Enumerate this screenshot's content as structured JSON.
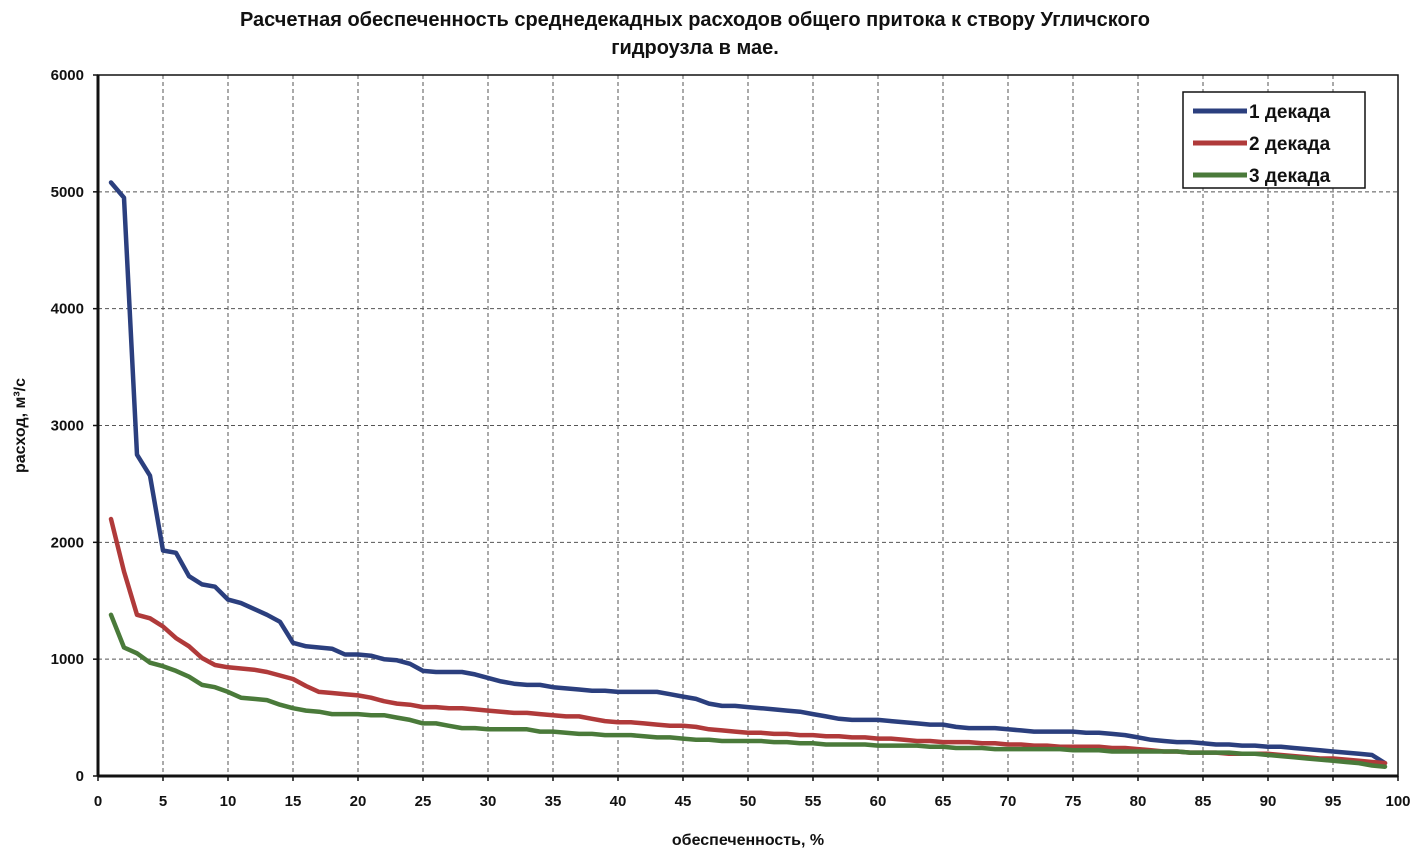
{
  "chart_data": {
    "type": "line",
    "title": [
      "Расчетная обеспеченность среднедекадных расходов общего притока к створу Угличского",
      "гидроузла в мае."
    ],
    "xlabel": "обеспеченность,  %",
    "ylabel": "расход, м³/с",
    "xlim": [
      0,
      100
    ],
    "ylim": [
      0,
      6000
    ],
    "xticks": [
      "0",
      "5",
      "10",
      "15",
      "20",
      "25",
      "30",
      "35",
      "40",
      "45",
      "50",
      "55",
      "60",
      "65",
      "70",
      "75",
      "80",
      "85",
      "90",
      "95",
      "100"
    ],
    "yticks": [
      "0",
      "1000",
      "2000",
      "3000",
      "4000",
      "5000",
      "6000"
    ],
    "grid": true,
    "legend_position": "top-right",
    "x": [
      1,
      2,
      3,
      4,
      5,
      6,
      7,
      8,
      9,
      10,
      11,
      12,
      13,
      14,
      15,
      16,
      17,
      18,
      19,
      20,
      21,
      22,
      23,
      24,
      25,
      26,
      27,
      28,
      29,
      30,
      31,
      32,
      33,
      34,
      35,
      36,
      37,
      38,
      39,
      40,
      41,
      42,
      43,
      44,
      45,
      46,
      47,
      48,
      49,
      50,
      51,
      52,
      53,
      54,
      55,
      56,
      57,
      58,
      59,
      60,
      61,
      62,
      63,
      64,
      65,
      66,
      67,
      68,
      69,
      70,
      71,
      72,
      73,
      74,
      75,
      76,
      77,
      78,
      79,
      80,
      81,
      82,
      83,
      84,
      85,
      86,
      87,
      88,
      89,
      90,
      91,
      92,
      93,
      94,
      95,
      96,
      97,
      98,
      99
    ],
    "series": [
      {
        "name": "1 декада",
        "color": "#2b3f7e",
        "values": [
          5080,
          4950,
          2750,
          2570,
          1930,
          1910,
          1710,
          1640,
          1620,
          1510,
          1480,
          1430,
          1380,
          1320,
          1140,
          1110,
          1100,
          1090,
          1040,
          1040,
          1030,
          1000,
          990,
          960,
          900,
          890,
          890,
          890,
          870,
          840,
          810,
          790,
          780,
          780,
          760,
          750,
          740,
          730,
          730,
          720,
          720,
          720,
          720,
          700,
          680,
          660,
          620,
          600,
          600,
          590,
          580,
          570,
          560,
          550,
          530,
          510,
          490,
          480,
          480,
          480,
          470,
          460,
          450,
          440,
          440,
          420,
          410,
          410,
          410,
          400,
          390,
          380,
          380,
          380,
          380,
          370,
          370,
          360,
          350,
          330,
          310,
          300,
          290,
          290,
          280,
          270,
          270,
          260,
          260,
          250,
          250,
          240,
          230,
          220,
          210,
          200,
          190,
          180,
          110
        ]
      },
      {
        "name": "2 декада",
        "color": "#b03a3a",
        "values": [
          2200,
          1750,
          1380,
          1350,
          1280,
          1180,
          1110,
          1010,
          950,
          930,
          920,
          910,
          890,
          860,
          830,
          770,
          720,
          710,
          700,
          690,
          670,
          640,
          620,
          610,
          590,
          590,
          580,
          580,
          570,
          560,
          550,
          540,
          540,
          530,
          520,
          510,
          510,
          490,
          470,
          460,
          460,
          450,
          440,
          430,
          430,
          420,
          400,
          390,
          380,
          370,
          370,
          360,
          360,
          350,
          350,
          340,
          340,
          330,
          330,
          320,
          320,
          310,
          300,
          300,
          290,
          290,
          290,
          280,
          280,
          270,
          270,
          260,
          260,
          250,
          250,
          250,
          250,
          240,
          240,
          230,
          220,
          210,
          210,
          200,
          200,
          200,
          190,
          190,
          190,
          190,
          180,
          170,
          160,
          150,
          150,
          140,
          130,
          120,
          110
        ]
      },
      {
        "name": "3 декада",
        "color": "#4a7a3a",
        "values": [
          1380,
          1100,
          1050,
          970,
          940,
          900,
          850,
          780,
          760,
          720,
          670,
          660,
          650,
          610,
          580,
          560,
          550,
          530,
          530,
          530,
          520,
          520,
          500,
          480,
          450,
          450,
          430,
          410,
          410,
          400,
          400,
          400,
          400,
          380,
          380,
          370,
          360,
          360,
          350,
          350,
          350,
          340,
          330,
          330,
          320,
          310,
          310,
          300,
          300,
          300,
          300,
          290,
          290,
          280,
          280,
          270,
          270,
          270,
          270,
          260,
          260,
          260,
          260,
          250,
          250,
          240,
          240,
          240,
          230,
          230,
          230,
          230,
          230,
          230,
          220,
          220,
          220,
          210,
          210,
          210,
          210,
          210,
          210,
          200,
          200,
          200,
          200,
          190,
          190,
          180,
          170,
          160,
          150,
          140,
          130,
          120,
          110,
          90,
          80
        ]
      }
    ]
  }
}
